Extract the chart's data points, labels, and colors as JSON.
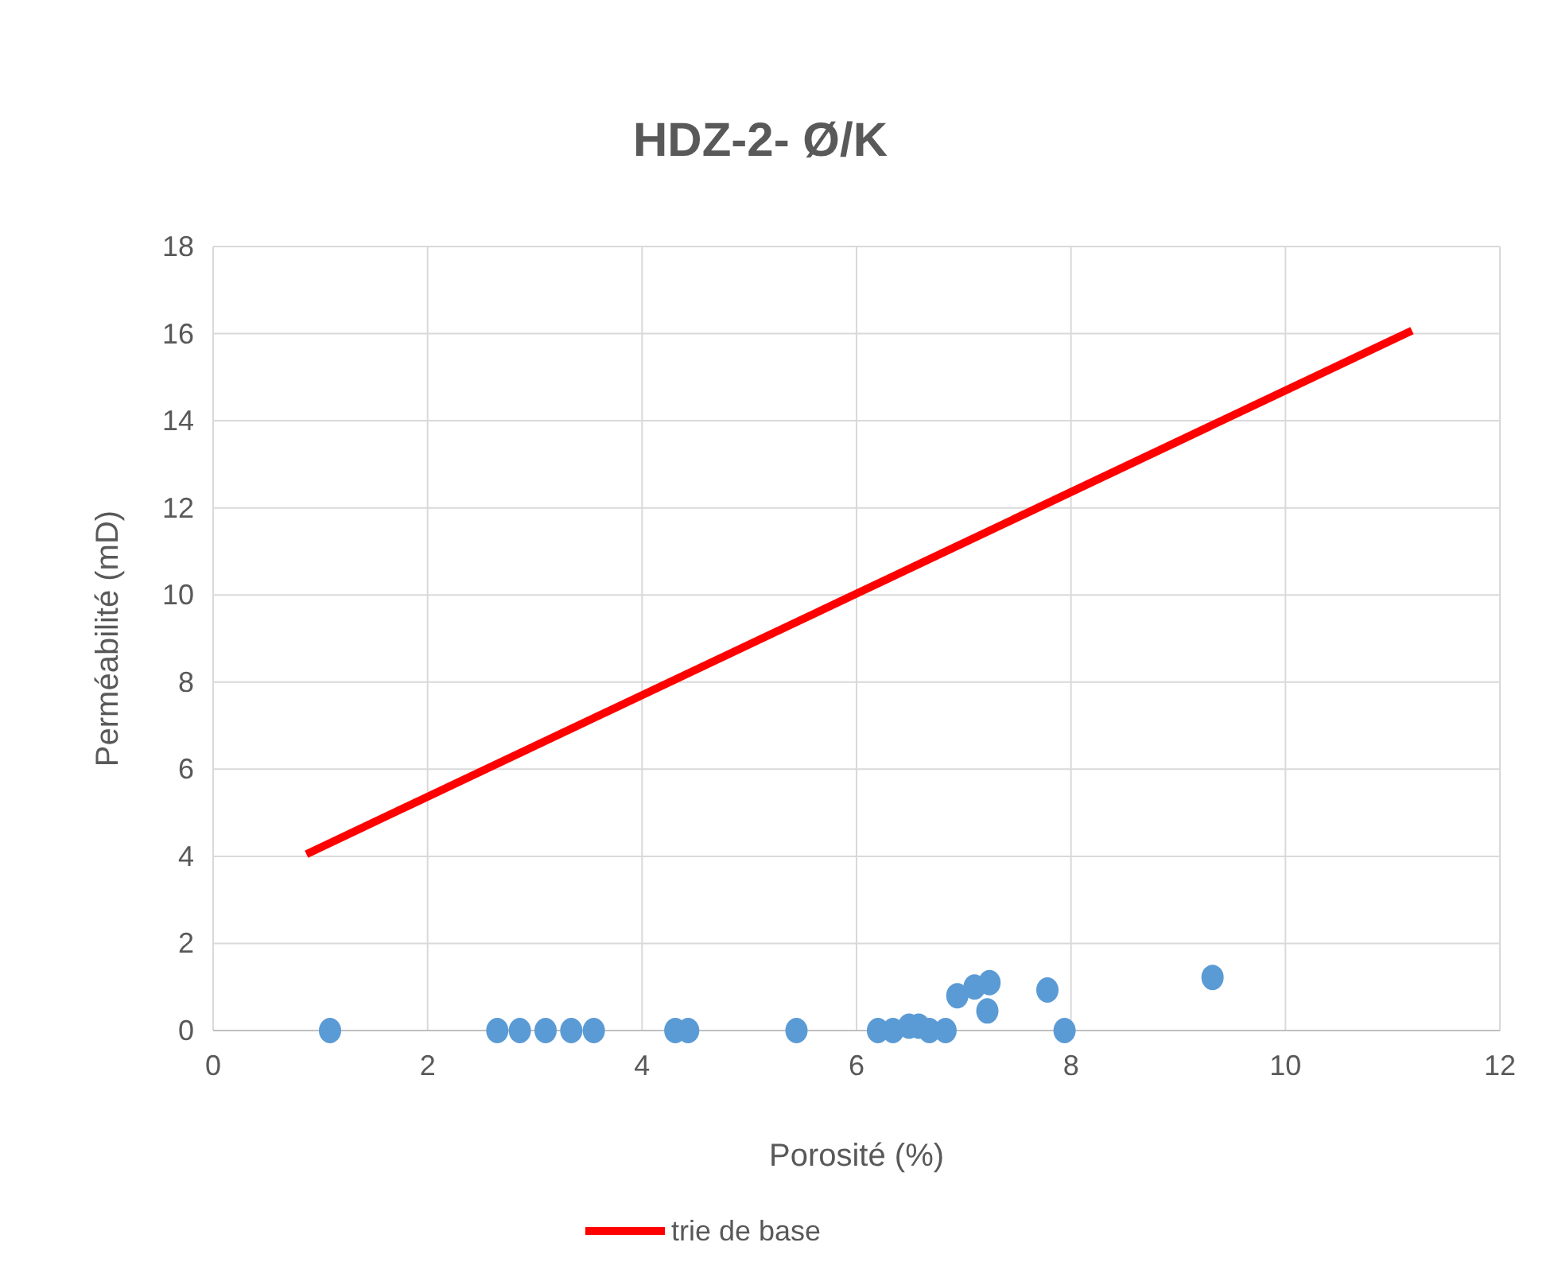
{
  "chart_data": {
    "type": "scatter",
    "title": "HDZ-2- Ø/K",
    "xlabel": "Porosité (%)",
    "ylabel": "Perméabilité (mD)",
    "xlim": [
      0,
      12
    ],
    "xticks": [
      0,
      2,
      4,
      6,
      8,
      10,
      12
    ],
    "ylim": [
      0,
      18
    ],
    "yticks": [
      0,
      2,
      4,
      6,
      8,
      10,
      12,
      14,
      16,
      18
    ],
    "grid": true,
    "legend": "bottom",
    "marker": "circle",
    "series": [
      {
        "color": "#5b9bd5",
        "x": [
          1.09,
          2.65,
          2.86,
          3.1,
          3.34,
          3.55,
          4.31,
          4.43,
          5.44,
          6.2,
          6.34,
          6.49,
          6.58,
          6.68,
          6.83,
          6.94,
          7.1,
          7.24,
          7.22,
          7.78,
          7.94,
          9.32
        ],
        "values": [
          0,
          0,
          0,
          0,
          0,
          0,
          0,
          0,
          0,
          0,
          0,
          0.1,
          0.1,
          0,
          0,
          0.8,
          1.0,
          1.1,
          0.45,
          0.93,
          0,
          1.22
        ]
      },
      {
        "type": "line",
        "name": "trie de base",
        "color": "#ff0000",
        "x": [
          0.87,
          11.18
        ],
        "values": [
          4.05,
          16.07
        ],
        "marker": "none",
        "line_style": "solid"
      }
    ]
  }
}
